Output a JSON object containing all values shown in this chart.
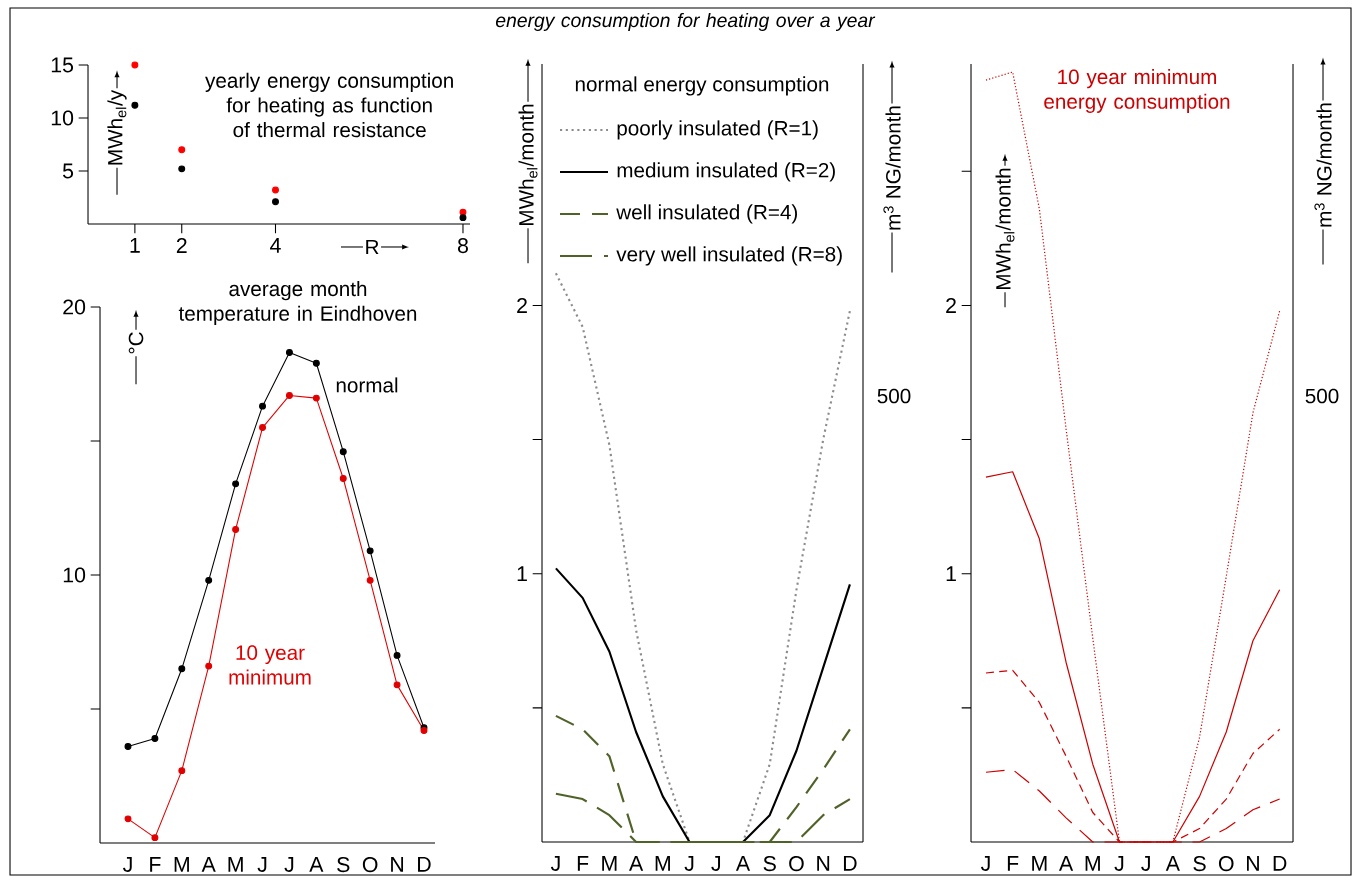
{
  "chart_data": [
    {
      "type": "scatter",
      "title": "yearly energy consumption for heating as function of thermal resistance",
      "xlabel": "R",
      "ylabel": "MWh$_{el}$/y",
      "x": [
        1,
        2,
        4,
        8
      ],
      "xlim": [
        0,
        8.15
      ],
      "xticks": [
        1,
        2,
        4,
        8
      ],
      "ylim": [
        0,
        15
      ],
      "yticks": [
        5,
        10,
        15
      ],
      "marker": "circle",
      "series": [
        {
          "color": "#ff0000",
          "values": [
            15,
            7,
            3.2,
            1.1
          ]
        },
        {
          "color": "#000000",
          "values": [
            11.2,
            5.2,
            2.1,
            0.6
          ]
        }
      ]
    },
    {
      "type": "line",
      "title": "average month temperature in Eindhoven",
      "ylabel": "°C",
      "categories": [
        "J",
        "F",
        "M",
        "A",
        "M",
        "J",
        "J",
        "A",
        "S",
        "O",
        "N",
        "D"
      ],
      "ylim": [
        0,
        20
      ],
      "yticks": [
        {
          "value": 5,
          "label": null
        },
        10,
        {
          "value": 15,
          "label": null
        },
        20
      ],
      "marker": "circle",
      "line_style": "solid",
      "annotations": [
        "normal",
        "10 year minimum"
      ],
      "series": [
        {
          "color": "#000000",
          "values": [
            3.6,
            3.9,
            6.5,
            9.8,
            13.4,
            16.3,
            18.3,
            17.9,
            14.6,
            10.9,
            7.0,
            4.3
          ]
        },
        {
          "color": "#e00000",
          "values": [
            0.9,
            0.2,
            2.7,
            6.6,
            11.7,
            15.5,
            16.7,
            16.6,
            13.6,
            9.8,
            5.9,
            4.2
          ]
        }
      ]
    },
    {
      "type": "line",
      "title": "energy consumption for heating over a year",
      "legend_title": "normal energy consumption",
      "legend": "top",
      "ylabel": "MWh$_{el}$/month",
      "y2label": "m$^{3}$ NG/month",
      "annotations": [
        "500"
      ],
      "categories": [
        "J",
        "F",
        "M",
        "A",
        "M",
        "J",
        "J",
        "A",
        "S",
        "O",
        "N",
        "D"
      ],
      "ylim": [
        0,
        2.9
      ],
      "yticks": [
        {
          "value": 0.5,
          "label": null
        },
        1,
        {
          "value": 1.5,
          "label": null
        },
        2
      ],
      "series": [
        {
          "name": "poorly insulated (R=1)",
          "color": "#8c8c8c",
          "line_style": "dotted",
          "values": [
            2.12,
            1.92,
            1.48,
            0.79,
            0.29,
            0,
            0,
            0,
            0.29,
            0.94,
            1.5,
            1.98
          ]
        },
        {
          "name": "medium insulated (R=2)",
          "color": "#000000",
          "line_style": "solid",
          "values": [
            1.02,
            0.91,
            0.71,
            0.41,
            0.17,
            0,
            0,
            0,
            0.1,
            0.34,
            0.65,
            0.96
          ]
        },
        {
          "name": "well insulated (R=4)",
          "color": "#4f6228",
          "line_style": "dashed",
          "values": [
            0.47,
            0.42,
            0.32,
            0,
            0,
            0,
            0,
            0,
            0,
            0.13,
            0.27,
            0.42
          ]
        },
        {
          "name": "very well insulated (R=8)",
          "color": "#4f6228",
          "line_style": "dashed",
          "values": [
            0.18,
            0.16,
            0.1,
            0,
            0,
            0,
            0,
            0,
            0,
            0,
            0.1,
            0.16
          ]
        }
      ]
    },
    {
      "type": "line",
      "title": "10 year minimum energy consumption",
      "ylabel": "MWh$_{el}$/month",
      "y2label": "m$^{3}$ NG/month",
      "annotations": [
        "500"
      ],
      "categories": [
        "J",
        "F",
        "M",
        "A",
        "M",
        "J",
        "J",
        "A",
        "S",
        "O",
        "N",
        "D"
      ],
      "ylim": [
        0,
        2.9
      ],
      "yticks": [
        {
          "value": 0.5,
          "label": null
        },
        1,
        {
          "value": 1.5,
          "label": null
        },
        2,
        {
          "value": 2.5,
          "label": null
        }
      ],
      "series": [
        {
          "color": "#cc0000",
          "line_style": "dotted",
          "values": [
            2.84,
            2.87,
            2.36,
            1.54,
            0.76,
            0,
            0,
            0,
            0.39,
            0.99,
            1.6,
            1.98
          ]
        },
        {
          "color": "#cc0000",
          "line_style": "solid",
          "values": [
            1.36,
            1.38,
            1.13,
            0.67,
            0.29,
            0,
            0,
            0,
            0.17,
            0.41,
            0.75,
            0.94
          ]
        },
        {
          "color": "#cc0000",
          "line_style": "dashed",
          "values": [
            0.63,
            0.64,
            0.52,
            0.32,
            0.11,
            0,
            0,
            0,
            0.05,
            0.16,
            0.33,
            0.42
          ]
        },
        {
          "color": "#cc0000",
          "line_style": "dashed",
          "values": [
            0.26,
            0.27,
            0.19,
            0.09,
            0,
            0,
            0,
            0,
            0,
            0.05,
            0.12,
            0.16
          ]
        }
      ]
    }
  ]
}
